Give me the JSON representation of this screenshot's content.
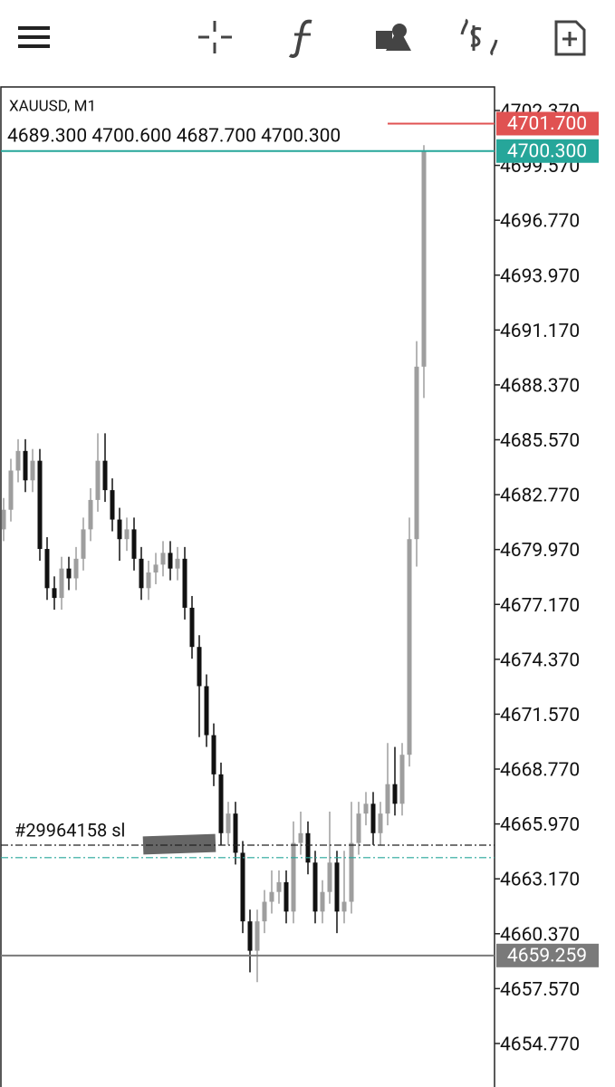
{
  "chart_data": {
    "type": "candlestick",
    "title": "XAUUSD, M1",
    "ohlc_label": "4689.300 4700.600 4687.700 4700.300",
    "bull_color": "#9e9e9e",
    "bear_color": "#111111",
    "open": [
      4681.0,
      4682.0,
      4684.0,
      4685.0,
      4683.5,
      4684.5,
      4680.0,
      4678.0,
      4677.5,
      4679.0,
      4678.5,
      4679.5,
      4681.0,
      4682.5,
      4684.5,
      4683.0,
      4681.5,
      4680.5,
      4681.0,
      4679.5,
      4678.0,
      4678.8,
      4679.2,
      4679.8,
      4679.0,
      4679.5,
      4677.0,
      4675.0,
      4673.0,
      4670.5,
      4668.5,
      4665.5,
      4666.5,
      4664.5,
      4661.0,
      4659.5,
      4661.0,
      4662.0,
      4662.5,
      4663.0,
      4661.5,
      4665.0,
      4665.5,
      4664.0,
      4661.5,
      4662.5,
      4664.0,
      4661.5,
      4662.0,
      4665.0,
      4666.5,
      4667.0,
      4665.5,
      4666.5,
      4668.0,
      4667.0,
      4669.5,
      4680.5,
      4689.3
    ],
    "high": [
      4682.6,
      4684.6,
      4685.6,
      4685.6,
      4685.1,
      4685.1,
      4680.6,
      4678.6,
      4679.6,
      4679.6,
      4680.1,
      4681.6,
      4683.1,
      4685.9,
      4685.9,
      4683.6,
      4682.1,
      4681.6,
      4681.6,
      4680.1,
      4679.4,
      4679.8,
      4680.4,
      4680.4,
      4680.1,
      4680.1,
      4677.6,
      4675.6,
      4673.6,
      4671.1,
      4669.1,
      4667.1,
      4667.1,
      4665.1,
      4661.6,
      4661.6,
      4662.6,
      4663.6,
      4663.6,
      4663.6,
      4666.1,
      4666.6,
      4666.1,
      4664.6,
      4663.1,
      4666.6,
      4664.6,
      4664.6,
      4667.1,
      4667.1,
      4667.6,
      4667.6,
      4667.1,
      4670.1,
      4669.9,
      4670.1,
      4681.6,
      4690.6,
      4700.6
    ],
    "low": [
      4680.4,
      4681.4,
      4683.4,
      4682.9,
      4682.9,
      4679.4,
      4677.4,
      4676.9,
      4676.9,
      4677.9,
      4677.9,
      4678.9,
      4680.4,
      4681.9,
      4682.4,
      4680.9,
      4679.4,
      4679.9,
      4678.9,
      4677.4,
      4677.4,
      4678.2,
      4678.6,
      4678.4,
      4678.4,
      4676.4,
      4674.4,
      4670.4,
      4669.9,
      4667.9,
      4664.9,
      4664.9,
      4663.9,
      4660.4,
      4658.4,
      4657.9,
      4660.4,
      4661.4,
      4661.9,
      4660.9,
      4660.9,
      4664.4,
      4663.4,
      4660.9,
      4660.9,
      4661.9,
      4660.4,
      4660.9,
      4661.4,
      4664.4,
      4665.9,
      4664.9,
      4664.9,
      4665.9,
      4666.4,
      4666.4,
      4668.9,
      4679.1,
      4687.7
    ],
    "close": [
      4682.0,
      4684.0,
      4685.0,
      4683.5,
      4684.5,
      4680.0,
      4678.0,
      4677.5,
      4679.0,
      4678.5,
      4679.5,
      4681.0,
      4682.5,
      4684.5,
      4683.0,
      4681.5,
      4680.5,
      4681.0,
      4679.5,
      4678.0,
      4678.8,
      4679.2,
      4679.8,
      4679.0,
      4679.5,
      4677.0,
      4675.0,
      4673.0,
      4670.5,
      4668.5,
      4665.5,
      4666.5,
      4664.5,
      4661.0,
      4659.5,
      4661.0,
      4662.0,
      4662.5,
      4663.0,
      4661.5,
      4665.0,
      4665.5,
      4664.0,
      4661.5,
      4662.5,
      4664.0,
      4661.5,
      4662.0,
      4665.0,
      4666.5,
      4667.0,
      4665.5,
      4666.5,
      4668.0,
      4667.0,
      4669.5,
      4680.5,
      4689.3,
      4700.3
    ],
    "ylim": [
      4652.55,
      4703.57
    ],
    "yticks": [
      {
        "value": 4702.37,
        "label": "4702.370"
      },
      {
        "value": 4699.57,
        "label": "4699.570"
      },
      {
        "value": 4696.77,
        "label": "4696.770"
      },
      {
        "value": 4693.97,
        "label": "4693.970"
      },
      {
        "value": 4691.17,
        "label": "4691.170"
      },
      {
        "value": 4688.37,
        "label": "4688.370"
      },
      {
        "value": 4685.57,
        "label": "4685.570"
      },
      {
        "value": 4682.77,
        "label": "4682.770"
      },
      {
        "value": 4679.97,
        "label": "4679.970"
      },
      {
        "value": 4677.17,
        "label": "4677.170"
      },
      {
        "value": 4674.37,
        "label": "4674.370"
      },
      {
        "value": 4671.57,
        "label": "4671.570"
      },
      {
        "value": 4668.77,
        "label": "4668.770"
      },
      {
        "value": 4665.97,
        "label": "4665.970"
      },
      {
        "value": 4663.17,
        "label": "4663.170"
      },
      {
        "value": 4660.37,
        "label": "4660.370"
      },
      {
        "value": 4657.57,
        "label": "4657.570"
      },
      {
        "value": 4654.77,
        "label": "4654.770"
      }
    ],
    "price_tags": [
      {
        "value": 4701.7,
        "label": "4701.700",
        "color": "#e05252"
      },
      {
        "value": 4700.3,
        "label": "4700.300",
        "color": "#26a69a"
      },
      {
        "value": 4659.259,
        "label": "4659.259",
        "color": "#7a7a7a"
      }
    ],
    "order_lines": [
      {
        "value": 4664.89,
        "label": "#29964158 sl",
        "color": "#222222"
      },
      {
        "value": 4664.25,
        "color": "#26a69a"
      }
    ]
  }
}
